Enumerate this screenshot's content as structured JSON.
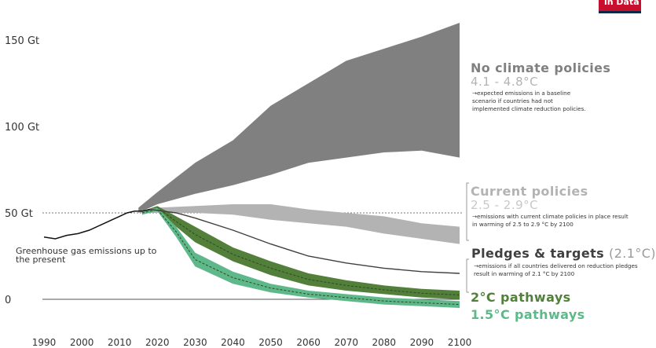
{
  "chart_data": {
    "type": "area",
    "x_ticks": [
      1990,
      2000,
      2010,
      2020,
      2030,
      2040,
      2050,
      2060,
      2070,
      2080,
      2090,
      2100
    ],
    "y_ticks": [
      {
        "value": 0,
        "label": "0"
      },
      {
        "value": 50,
        "label": "50 Gt"
      },
      {
        "value": 100,
        "label": "100 Gt"
      },
      {
        "value": 150,
        "label": "150 Gt"
      }
    ],
    "xlim": [
      1990,
      2100
    ],
    "ylim": [
      0,
      170
    ],
    "historical": {
      "label": "Greenhouse gas emissions up to the present",
      "x": [
        1990,
        1993,
        1996,
        1999,
        2002,
        2005,
        2008,
        2010,
        2012,
        2014,
        2016,
        2018
      ],
      "y": [
        36,
        35,
        37,
        38,
        40,
        43,
        46,
        48,
        50,
        51,
        51,
        52
      ]
    },
    "scenarios": [
      {
        "name": "No climate policies",
        "range": "4.1 - 4.8°C",
        "description": "→expected emissions in a baseline scenario if countries had not implemented climate reduction policies.",
        "color": "#808080",
        "x": [
          2015,
          2020,
          2030,
          2040,
          2050,
          2060,
          2070,
          2080,
          2090,
          2100
        ],
        "upper": [
          53,
          62,
          79,
          92,
          112,
          125,
          138,
          145,
          152,
          160
        ],
        "lower": [
          50,
          55,
          61,
          66,
          72,
          79,
          82,
          85,
          86,
          82
        ]
      },
      {
        "name": "Current policies",
        "range": "2.5 - 2.9°C",
        "description": "→emissions with current climate policies in place result in warming of 2.5 to 2.9 °C by 2100",
        "color": "#b3b3b3",
        "x": [
          2015,
          2020,
          2030,
          2040,
          2050,
          2060,
          2070,
          2080,
          2090,
          2100
        ],
        "upper": [
          51,
          53,
          54,
          55,
          55,
          52,
          50,
          48,
          44,
          42
        ],
        "lower": [
          50,
          50,
          50,
          49,
          46,
          44,
          42,
          38,
          35,
          32
        ]
      },
      {
        "name": "Pledges & targets",
        "range": "(2.1°C)",
        "description": "→emissions if all countries delivered on reduction pledges result in warming of 2.1 °C by 2100",
        "color": "#404040",
        "x": [
          2018,
          2025,
          2030,
          2040,
          2050,
          2060,
          2070,
          2080,
          2090,
          2100
        ],
        "y": [
          52,
          50,
          47,
          40,
          32,
          25,
          21,
          18,
          16,
          15
        ]
      },
      {
        "name": "2°C pathways",
        "color": "#527f3a",
        "x": [
          2016,
          2020,
          2025,
          2030,
          2040,
          2050,
          2060,
          2070,
          2080,
          2090,
          2100
        ],
        "upper": [
          51,
          54,
          48,
          42,
          30,
          22,
          15,
          11,
          8,
          6,
          5
        ],
        "lower": [
          49,
          52,
          42,
          33,
          22,
          14,
          8,
          5,
          3,
          1,
          0
        ]
      },
      {
        "name": "1.5°C pathways",
        "color": "#5fb88a",
        "x": [
          2016,
          2020,
          2025,
          2030,
          2040,
          2050,
          2060,
          2070,
          2080,
          2090,
          2100
        ],
        "upper": [
          51,
          53,
          42,
          27,
          16,
          9,
          5,
          3,
          1,
          0,
          -1
        ],
        "lower": [
          49,
          51,
          36,
          19,
          9,
          4,
          1,
          -1,
          -3,
          -4,
          -5
        ]
      }
    ],
    "reference_line": {
      "value": 50
    }
  },
  "colors": {
    "no_policy": "#808080",
    "current_policy": "#b3b3b3",
    "pledges_line": "#404040",
    "pathway_2c": "#527f3a",
    "pathway_15c": "#5fb88a",
    "axis": "#333333"
  },
  "logo_text": "in Data"
}
